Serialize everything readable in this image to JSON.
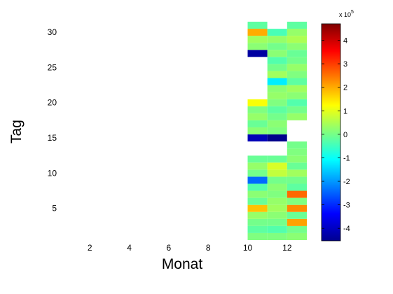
{
  "chart_data": {
    "type": "heatmap",
    "title": "",
    "xlabel": "Monat",
    "ylabel": "Tag",
    "xlim": [
      0.5,
      13
    ],
    "ylim": [
      0.5,
      31.5
    ],
    "xticks": [
      2,
      4,
      6,
      8,
      10,
      12
    ],
    "yticks": [
      5,
      10,
      15,
      20,
      25,
      30
    ],
    "colormap": "jet",
    "clim": [
      -4.5,
      4.7
    ],
    "colorbar": {
      "ticks": [
        -4,
        -3,
        -2,
        -1,
        0,
        1,
        2,
        3,
        4
      ],
      "exponent_label": "x 10",
      "exponent": "5"
    },
    "missing_value_color": "#ffffff",
    "months": [
      10,
      11,
      12
    ],
    "values_by_month": [
      [
        0.1,
        -0.2,
        0.0,
        0.3,
        1.8,
        -0.1,
        0.2,
        -0.3,
        -2.4,
        0.0,
        0.3,
        -0.1,
        null,
        null,
        -4.0,
        0.2,
        -0.1,
        0.3,
        0.1,
        1.2,
        null,
        null,
        null,
        null,
        null,
        null,
        -4.2,
        0.2,
        0.4,
        2.0,
        -0.2
      ],
      [
        0.1,
        -0.3,
        0.0,
        0.2,
        0.4,
        0.3,
        0.1,
        0.2,
        0.0,
        0.7,
        0.9,
        -0.1,
        null,
        null,
        -4.4,
        0.1,
        0.2,
        0.0,
        -0.2,
        0.1,
        0.3,
        0.2,
        -1.2,
        0.4,
        0.0,
        -0.3,
        0.2,
        0.0,
        0.3,
        -0.4,
        null
      ],
      [
        0.2,
        0.0,
        2.1,
        -0.1,
        2.3,
        0.1,
        2.6,
        -0.2,
        0.0,
        0.4,
        -0.1,
        0.2,
        0.1,
        0.0,
        null,
        null,
        null,
        0.3,
        0.0,
        -0.3,
        0.2,
        0.4,
        -0.2,
        0.1,
        0.3,
        0.0,
        -0.1,
        0.2,
        0.5,
        0.3,
        -0.2
      ]
    ]
  }
}
